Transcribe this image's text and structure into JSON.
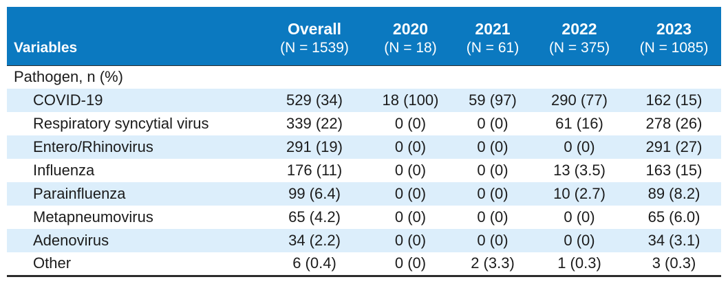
{
  "header": {
    "variables_label": "Variables",
    "columns": [
      {
        "year": "Overall",
        "n": "(N = 1539)"
      },
      {
        "year": "2020",
        "n": "(N = 18)"
      },
      {
        "year": "2021",
        "n": "(N = 61)"
      },
      {
        "year": "2022",
        "n": "(N = 375)"
      },
      {
        "year": "2023",
        "n": "(N = 1085)"
      }
    ]
  },
  "section": {
    "label": "Pathogen, n (%)"
  },
  "rows": [
    {
      "label": "COVID-19",
      "values": [
        "529 (34)",
        "18 (100)",
        "59 (97)",
        "290 (77)",
        "162 (15)"
      ]
    },
    {
      "label": "Respiratory syncytial virus",
      "values": [
        "339 (22)",
        "0 (0)",
        "0 (0)",
        "61 (16)",
        "278 (26)"
      ]
    },
    {
      "label": "Entero/Rhinovirus",
      "values": [
        "291 (19)",
        "0 (0)",
        "0 (0)",
        "0 (0)",
        "291 (27)"
      ]
    },
    {
      "label": "Influenza",
      "values": [
        "176 (11)",
        "0 (0)",
        "0 (0)",
        "13 (3.5)",
        "163 (15)"
      ]
    },
    {
      "label": "Parainfluenza",
      "values": [
        "99 (6.4)",
        "0 (0)",
        "0 (0)",
        "10 (2.7)",
        "89 (8.2)"
      ]
    },
    {
      "label": "Metapneumovirus",
      "values": [
        "65 (4.2)",
        "0 (0)",
        "0 (0)",
        "0 (0)",
        "65 (6.0)"
      ]
    },
    {
      "label": "Adenovirus",
      "values": [
        "34 (2.2)",
        "0 (0)",
        "0 (0)",
        "0 (0)",
        "34 (3.1)"
      ]
    },
    {
      "label": "Other",
      "values": [
        "6 (0.4)",
        "0 (0)",
        "2 (3.3)",
        "1 (0.3)",
        "3 (0.3)"
      ]
    }
  ],
  "colors": {
    "header_bg": "#0b79c0",
    "row_shade": "#dceefb"
  }
}
